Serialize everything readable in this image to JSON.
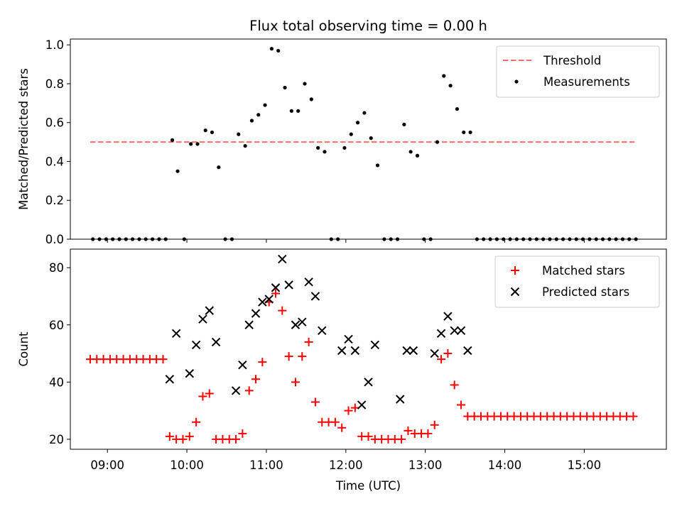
{
  "chart_data": {
    "type": "scatter",
    "title": "Flux total observing time = 0.00 h",
    "xlabel": "Time (UTC)",
    "xlim": [
      "08:32",
      "16:02"
    ],
    "xticks": [
      "09:00",
      "10:00",
      "11:00",
      "12:00",
      "13:00",
      "14:00",
      "15:00"
    ],
    "panels": [
      {
        "ylabel": "Matched/Predicted stars",
        "ylim": [
          0,
          1.03
        ],
        "yticks": [
          "0.0",
          "0.2",
          "0.4",
          "0.6",
          "0.8",
          "1.0"
        ],
        "legend_position": "top-right",
        "threshold": {
          "name": "Threshold",
          "value": 0.5,
          "x_start": "08:47",
          "x_end": "15:38",
          "color": "#ff6b6b"
        },
        "series": [
          {
            "name": "Measurements",
            "color": "#000000",
            "points": [
              [
                "08:49",
                0
              ],
              [
                "08:54",
                0
              ],
              [
                "08:59",
                0
              ],
              [
                "09:04",
                0
              ],
              [
                "09:09",
                0
              ],
              [
                "09:14",
                0
              ],
              [
                "09:19",
                0
              ],
              [
                "09:24",
                0
              ],
              [
                "09:29",
                0
              ],
              [
                "09:34",
                0
              ],
              [
                "09:39",
                0
              ],
              [
                "09:44",
                0
              ],
              [
                "09:49",
                0.51
              ],
              [
                "09:53",
                0.35
              ],
              [
                "09:58",
                0.0
              ],
              [
                "10:03",
                0.49
              ],
              [
                "10:08",
                0.49
              ],
              [
                "10:14",
                0.56
              ],
              [
                "10:19",
                0.55
              ],
              [
                "10:24",
                0.37
              ],
              [
                "10:29",
                0
              ],
              [
                "10:34",
                0
              ],
              [
                "10:39",
                0.54
              ],
              [
                "10:44",
                0.48
              ],
              [
                "10:49",
                0.61
              ],
              [
                "10:54",
                0.64
              ],
              [
                "10:59",
                0.69
              ],
              [
                "11:04",
                0.98
              ],
              [
                "11:09",
                0.97
              ],
              [
                "11:14",
                0.78
              ],
              [
                "11:19",
                0.66
              ],
              [
                "11:24",
                0.66
              ],
              [
                "11:29",
                0.8
              ],
              [
                "11:34",
                0.72
              ],
              [
                "11:39",
                0.47
              ],
              [
                "11:44",
                0.45
              ],
              [
                "11:49",
                0
              ],
              [
                "11:54",
                0
              ],
              [
                "11:59",
                0.47
              ],
              [
                "12:04",
                0.54
              ],
              [
                "12:09",
                0.6
              ],
              [
                "12:14",
                0.65
              ],
              [
                "12:19",
                0.52
              ],
              [
                "12:24",
                0.38
              ],
              [
                "12:29",
                0
              ],
              [
                "12:34",
                0
              ],
              [
                "12:39",
                0
              ],
              [
                "12:44",
                0.59
              ],
              [
                "12:49",
                0.45
              ],
              [
                "12:54",
                0.43
              ],
              [
                "12:59",
                0
              ],
              [
                "13:04",
                0
              ],
              [
                "13:09",
                0.5
              ],
              [
                "13:14",
                0.84
              ],
              [
                "13:19",
                0.79
              ],
              [
                "13:24",
                0.67
              ],
              [
                "13:29",
                0.55
              ],
              [
                "13:34",
                0.55
              ],
              [
                "13:39",
                0
              ],
              [
                "13:44",
                0
              ],
              [
                "13:49",
                0
              ],
              [
                "13:54",
                0
              ],
              [
                "13:59",
                0
              ],
              [
                "14:04",
                0
              ],
              [
                "14:09",
                0
              ],
              [
                "14:14",
                0
              ],
              [
                "14:19",
                0
              ],
              [
                "14:24",
                0
              ],
              [
                "14:29",
                0
              ],
              [
                "14:34",
                0
              ],
              [
                "14:39",
                0
              ],
              [
                "14:44",
                0
              ],
              [
                "14:49",
                0
              ],
              [
                "14:54",
                0
              ],
              [
                "14:59",
                0
              ],
              [
                "15:04",
                0
              ],
              [
                "15:09",
                0
              ],
              [
                "15:14",
                0
              ],
              [
                "15:19",
                0
              ],
              [
                "15:24",
                0
              ],
              [
                "15:29",
                0
              ],
              [
                "15:34",
                0
              ],
              [
                "15:39",
                0
              ]
            ]
          }
        ]
      },
      {
        "ylabel": "Count",
        "ylim": [
          16.5,
          86.5
        ],
        "yticks": [
          "20",
          "40",
          "60",
          "80"
        ],
        "legend_position": "top-right",
        "series": [
          {
            "name": "Matched stars",
            "color": "#ff0000",
            "marker": "plus",
            "points": [
              [
                "08:47",
                48
              ],
              [
                "08:52",
                48
              ],
              [
                "08:57",
                48
              ],
              [
                "09:02",
                48
              ],
              [
                "09:07",
                48
              ],
              [
                "09:12",
                48
              ],
              [
                "09:17",
                48
              ],
              [
                "09:22",
                48
              ],
              [
                "09:27",
                48
              ],
              [
                "09:32",
                48
              ],
              [
                "09:37",
                48
              ],
              [
                "09:42",
                48
              ],
              [
                "09:47",
                21
              ],
              [
                "09:52",
                20
              ],
              [
                "09:57",
                20
              ],
              [
                "10:02",
                21
              ],
              [
                "10:07",
                26
              ],
              [
                "10:12",
                35
              ],
              [
                "10:17",
                36
              ],
              [
                "10:22",
                20
              ],
              [
                "10:27",
                20
              ],
              [
                "10:32",
                20
              ],
              [
                "10:37",
                20
              ],
              [
                "10:42",
                22
              ],
              [
                "10:47",
                37
              ],
              [
                "10:52",
                41
              ],
              [
                "10:57",
                47
              ],
              [
                "11:02",
                68
              ],
              [
                "11:07",
                71
              ],
              [
                "11:12",
                65
              ],
              [
                "11:17",
                49
              ],
              [
                "11:22",
                40
              ],
              [
                "11:27",
                49
              ],
              [
                "11:32",
                54
              ],
              [
                "11:37",
                33
              ],
              [
                "11:42",
                26
              ],
              [
                "11:47",
                26
              ],
              [
                "11:52",
                26
              ],
              [
                "11:57",
                24
              ],
              [
                "12:02",
                30
              ],
              [
                "12:07",
                31
              ],
              [
                "12:12",
                21
              ],
              [
                "12:17",
                21
              ],
              [
                "12:22",
                20
              ],
              [
                "12:27",
                20
              ],
              [
                "12:32",
                20
              ],
              [
                "12:37",
                20
              ],
              [
                "12:42",
                20
              ],
              [
                "12:47",
                23
              ],
              [
                "12:52",
                22
              ],
              [
                "12:57",
                22
              ],
              [
                "13:02",
                22
              ],
              [
                "13:07",
                25
              ],
              [
                "13:12",
                48
              ],
              [
                "13:17",
                50
              ],
              [
                "13:22",
                39
              ],
              [
                "13:27",
                32
              ],
              [
                "13:32",
                28
              ],
              [
                "13:37",
                28
              ],
              [
                "13:42",
                28
              ],
              [
                "13:47",
                28
              ],
              [
                "13:52",
                28
              ],
              [
                "13:57",
                28
              ],
              [
                "14:02",
                28
              ],
              [
                "14:07",
                28
              ],
              [
                "14:12",
                28
              ],
              [
                "14:17",
                28
              ],
              [
                "14:22",
                28
              ],
              [
                "14:27",
                28
              ],
              [
                "14:32",
                28
              ],
              [
                "14:37",
                28
              ],
              [
                "14:42",
                28
              ],
              [
                "14:47",
                28
              ],
              [
                "14:52",
                28
              ],
              [
                "14:57",
                28
              ],
              [
                "15:02",
                28
              ],
              [
                "15:07",
                28
              ],
              [
                "15:12",
                28
              ],
              [
                "15:17",
                28
              ],
              [
                "15:22",
                28
              ],
              [
                "15:27",
                28
              ],
              [
                "15:32",
                28
              ],
              [
                "15:37",
                28
              ]
            ]
          },
          {
            "name": "Predicted stars",
            "color": "#000000",
            "marker": "x",
            "points": [
              [
                "09:47",
                41
              ],
              [
                "09:52",
                57
              ],
              [
                "10:02",
                43
              ],
              [
                "10:07",
                53
              ],
              [
                "10:12",
                62
              ],
              [
                "10:17",
                65
              ],
              [
                "10:22",
                54
              ],
              [
                "10:37",
                37
              ],
              [
                "10:42",
                46
              ],
              [
                "10:47",
                60
              ],
              [
                "10:52",
                64
              ],
              [
                "10:57",
                68
              ],
              [
                "11:02",
                69
              ],
              [
                "11:07",
                73
              ],
              [
                "11:12",
                83
              ],
              [
                "11:17",
                74
              ],
              [
                "11:22",
                60
              ],
              [
                "11:27",
                61
              ],
              [
                "11:32",
                75
              ],
              [
                "11:37",
                70
              ],
              [
                "11:42",
                58
              ],
              [
                "11:57",
                51
              ],
              [
                "12:02",
                55
              ],
              [
                "12:07",
                51
              ],
              [
                "12:12",
                32
              ],
              [
                "12:17",
                40
              ],
              [
                "12:22",
                53
              ],
              [
                "12:41",
                34
              ],
              [
                "12:46",
                51
              ],
              [
                "12:51",
                51
              ],
              [
                "13:07",
                50
              ],
              [
                "13:12",
                57
              ],
              [
                "13:17",
                63
              ],
              [
                "13:22",
                58
              ],
              [
                "13:27",
                58
              ],
              [
                "13:32",
                51
              ]
            ]
          }
        ]
      }
    ]
  }
}
